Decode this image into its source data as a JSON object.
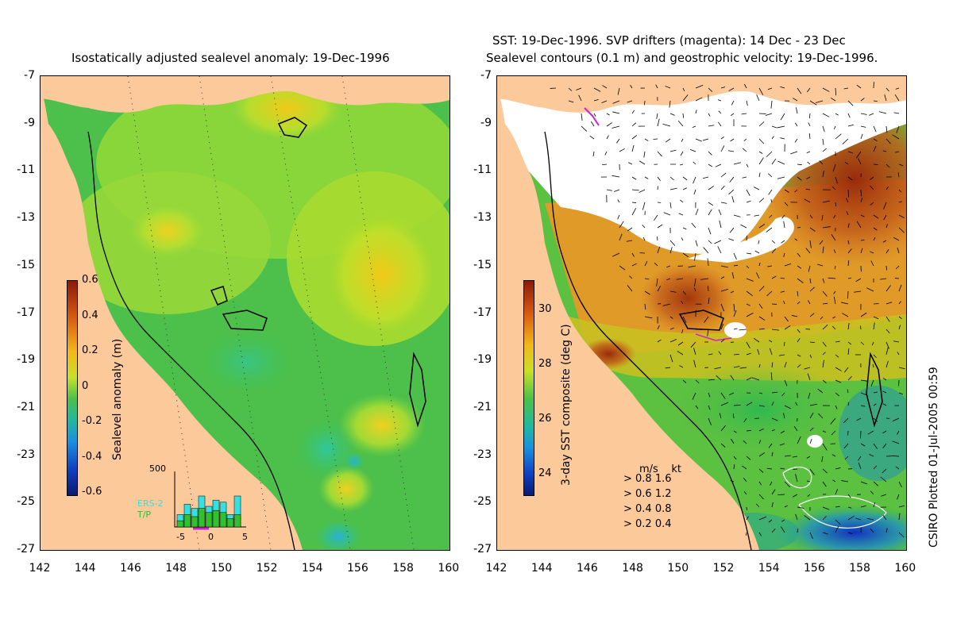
{
  "left_panel": {
    "title": "Isostatically adjusted sealevel anomaly: 19-Dec-1996",
    "colorbar_label": "Sealevel anomaly (m)",
    "colorbar_ticks": [
      "0.6",
      "0.4",
      "0.2",
      "0",
      "-0.2",
      "-0.4",
      "-0.6"
    ],
    "histogram": {
      "ymax_label": "500",
      "series": [
        "ERS-2",
        "T/P"
      ],
      "series_colors": [
        "#35e0e0",
        "#30c030"
      ],
      "x_ticks": [
        "-5",
        "0",
        "5"
      ]
    }
  },
  "right_panel": {
    "title_line1": "SST: 19-Dec-1996. SVP drifters (magenta): 14 Dec - 23 Dec",
    "title_line2": "Sealevel contours (0.1 m) and geostrophic velocity: 19-Dec-1996.",
    "colorbar_label": "3-day SST composite (deg C)",
    "colorbar_ticks": [
      "30",
      "28",
      "26",
      "24"
    ],
    "velocity_legend": {
      "header_ms": "m/s",
      "header_kt": "kt",
      "rows": [
        {
          "ms": "0.8",
          "kt": "1.6"
        },
        {
          "ms": "0.6",
          "kt": "1.2"
        },
        {
          "ms": "0.4",
          "kt": "0.8"
        },
        {
          "ms": "0.2",
          "kt": "0.4"
        }
      ]
    }
  },
  "axes": {
    "y_ticks": [
      "-7",
      "-9",
      "-11",
      "-13",
      "-15",
      "-17",
      "-19",
      "-21",
      "-23",
      "-25",
      "-27"
    ],
    "x_ticks": [
      "142",
      "144",
      "146",
      "148",
      "150",
      "152",
      "154",
      "156",
      "158",
      "160"
    ]
  },
  "credit": "CSIRO Plotted 01-Jul-2005 00:59",
  "colors": {
    "land": "#fbc99a",
    "ocean_green": "#4cc04a",
    "sst_orange": "#e69a2a",
    "cloud": "#ffffff",
    "drifter": "#d020d0"
  }
}
